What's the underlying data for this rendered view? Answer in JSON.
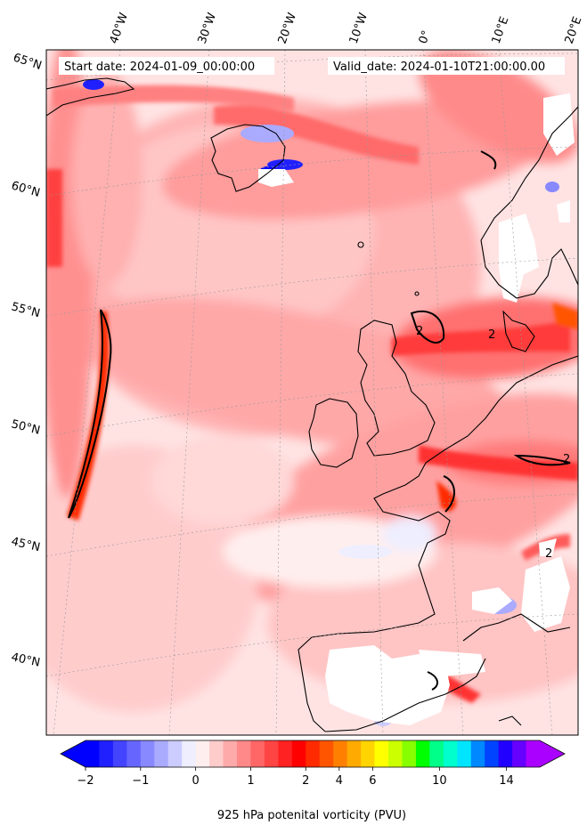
{
  "header": {
    "start_date": "Start date: 2024-01-09_00:00:00",
    "valid_date": "Valid_date: 2024-01-10T21:00:00.00"
  },
  "longitude_labels": [
    "40°W",
    "30°W",
    "20°W",
    "10°W",
    "0°",
    "10°E",
    "20°E"
  ],
  "latitude_labels": [
    "65°N",
    "60°N",
    "55°N",
    "50°N",
    "45°N",
    "40°N"
  ],
  "colorbar": {
    "label": "925 hPa potenital vorticity (PVU)",
    "min": -2,
    "max": 16,
    "extend": "both",
    "colors": [
      "#0000ff",
      "#2020ff",
      "#4444ff",
      "#6666ff",
      "#8888ff",
      "#aaaaff",
      "#ccccff",
      "#eeeeff",
      "#ffeeee",
      "#ffcccc",
      "#ffaaaa",
      "#ff8888",
      "#ff6666",
      "#ff4444",
      "#ff2222",
      "#ff0000",
      "#ff2a00",
      "#ff5500",
      "#ff8000",
      "#ffaa00",
      "#ffd400",
      "#ffff00",
      "#ccff00",
      "#88ff00",
      "#00ff00",
      "#00ff88",
      "#00ffcc",
      "#00e5ff",
      "#0088ff",
      "#0044ff",
      "#2200ff",
      "#6600ff",
      "#aa00ff"
    ],
    "ticks": [
      {
        "value": -2,
        "label": "−2"
      },
      {
        "value": -1,
        "label": "−1"
      },
      {
        "value": 0,
        "label": "0"
      },
      {
        "value": 1,
        "label": "1"
      },
      {
        "value": 2,
        "label": "2"
      },
      {
        "value": 4,
        "label": "4"
      },
      {
        "value": 6,
        "label": "6"
      },
      {
        "value": 10,
        "label": "10"
      },
      {
        "value": 14,
        "label": "14"
      }
    ]
  },
  "contour_labels": [
    "2",
    "2",
    "2",
    "2"
  ]
}
